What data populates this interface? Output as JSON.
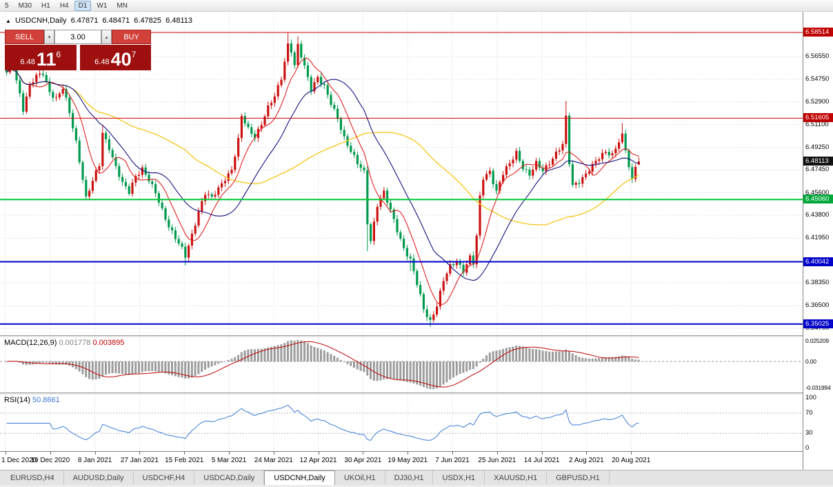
{
  "toolbar": {
    "periods": [
      "5",
      "M30",
      "H1",
      "H4",
      "D1",
      "W1",
      "MN"
    ],
    "active_period": "D1"
  },
  "chart_header": {
    "collapse_icon": "▲",
    "symbol": "USDCNH,Daily",
    "open": "6.47871",
    "high": "6.48471",
    "low": "6.47825",
    "close": "6.48113"
  },
  "trade_panel": {
    "sell_label": "SELL",
    "buy_label": "BUY",
    "volume": "3.00",
    "spin_down_icon": "▾",
    "spin_up_icon": "▴",
    "bid": {
      "prefix": "6.48",
      "big": "11",
      "sup": "6"
    },
    "ask": {
      "prefix": "6.48",
      "big": "40",
      "sup": "7"
    }
  },
  "price_scale": {
    "tick_labels": [
      "6.56550",
      "6.54750",
      "6.52900",
      "6.51100",
      "6.49250",
      "6.47450",
      "6.45600",
      "6.43800",
      "6.41950",
      "6.38350",
      "6.36500",
      "6.34700"
    ],
    "tick_values": [
      6.5655,
      6.5475,
      6.529,
      6.511,
      6.4925,
      6.4745,
      6.456,
      6.438,
      6.4195,
      6.3835,
      6.365,
      6.347
    ],
    "line_labels": [
      {
        "text": "6.58514",
        "price": 6.58514,
        "bg": "#c00000"
      },
      {
        "text": "6.51605",
        "price": 6.51605,
        "bg": "#c00000"
      },
      {
        "text": "6.48113",
        "price": 6.48113,
        "bg": "#111111"
      },
      {
        "text": "6.45060",
        "price": 6.4506,
        "bg": "#00a83c"
      },
      {
        "text": "6.40042",
        "price": 6.40042,
        "bg": "#0000c8"
      },
      {
        "text": "6.35025",
        "price": 6.35025,
        "bg": "#0000c8"
      }
    ]
  },
  "chart_data": {
    "type": "candlestick",
    "symbol": "USDCNH",
    "timeframe": "Daily",
    "candle_count": 192,
    "current_bar": {
      "open": 6.47871,
      "high": 6.48471,
      "low": 6.47825,
      "close": 6.48113
    },
    "up_color": "#cc1111",
    "down_color": "#009a4e",
    "price_anchors": [
      [
        0,
        6.552
      ],
      [
        2,
        6.557
      ],
      [
        4,
        6.536
      ],
      [
        5,
        6.524
      ],
      [
        7,
        6.543
      ],
      [
        9,
        6.549
      ],
      [
        11,
        6.552
      ],
      [
        13,
        6.538
      ],
      [
        15,
        6.532
      ],
      [
        17,
        6.54
      ],
      [
        19,
        6.52
      ],
      [
        21,
        6.497
      ],
      [
        23,
        6.468
      ],
      [
        24,
        6.452
      ],
      [
        26,
        6.465
      ],
      [
        28,
        6.478
      ],
      [
        29,
        6.504
      ],
      [
        31,
        6.493
      ],
      [
        33,
        6.477
      ],
      [
        35,
        6.463
      ],
      [
        37,
        6.456
      ],
      [
        39,
        6.47
      ],
      [
        41,
        6.476
      ],
      [
        43,
        6.466
      ],
      [
        45,
        6.455
      ],
      [
        47,
        6.442
      ],
      [
        49,
        6.43
      ],
      [
        51,
        6.42
      ],
      [
        53,
        6.41
      ],
      [
        54,
        6.404
      ],
      [
        56,
        6.422
      ],
      [
        58,
        6.442
      ],
      [
        60,
        6.456
      ],
      [
        62,
        6.451
      ],
      [
        64,
        6.459
      ],
      [
        66,
        6.468
      ],
      [
        68,
        6.475
      ],
      [
        70,
        6.498
      ],
      [
        71,
        6.517
      ],
      [
        73,
        6.507
      ],
      [
        75,
        6.502
      ],
      [
        77,
        6.512
      ],
      [
        79,
        6.524
      ],
      [
        81,
        6.533
      ],
      [
        83,
        6.549
      ],
      [
        85,
        6.576
      ],
      [
        86,
        6.571
      ],
      [
        87,
        6.558
      ],
      [
        88,
        6.574
      ],
      [
        90,
        6.557
      ],
      [
        92,
        6.54
      ],
      [
        94,
        6.55
      ],
      [
        96,
        6.541
      ],
      [
        98,
        6.527
      ],
      [
        100,
        6.516
      ],
      [
        102,
        6.501
      ],
      [
        104,
        6.49
      ],
      [
        106,
        6.479
      ],
      [
        108,
        6.472
      ],
      [
        109,
        6.432
      ],
      [
        110,
        6.418
      ],
      [
        112,
        6.447
      ],
      [
        114,
        6.456
      ],
      [
        116,
        6.441
      ],
      [
        118,
        6.426
      ],
      [
        120,
        6.412
      ],
      [
        122,
        6.402
      ],
      [
        124,
        6.382
      ],
      [
        126,
        6.362
      ],
      [
        128,
        6.353
      ],
      [
        130,
        6.366
      ],
      [
        132,
        6.385
      ],
      [
        134,
        6.396
      ],
      [
        136,
        6.401
      ],
      [
        138,
        6.394
      ],
      [
        140,
        6.404
      ],
      [
        141,
        6.399
      ],
      [
        142,
        6.42
      ],
      [
        143,
        6.452
      ],
      [
        144,
        6.468
      ],
      [
        146,
        6.474
      ],
      [
        148,
        6.457
      ],
      [
        150,
        6.471
      ],
      [
        152,
        6.479
      ],
      [
        154,
        6.489
      ],
      [
        156,
        6.477
      ],
      [
        158,
        6.47
      ],
      [
        160,
        6.479
      ],
      [
        162,
        6.474
      ],
      [
        164,
        6.481
      ],
      [
        166,
        6.488
      ],
      [
        168,
        6.494
      ],
      [
        169,
        6.516
      ],
      [
        170,
        6.48
      ],
      [
        171,
        6.462
      ],
      [
        173,
        6.466
      ],
      [
        175,
        6.471
      ],
      [
        177,
        6.477
      ],
      [
        179,
        6.484
      ],
      [
        181,
        6.49
      ],
      [
        183,
        6.487
      ],
      [
        185,
        6.497
      ],
      [
        186,
        6.501
      ],
      [
        187,
        6.49
      ],
      [
        188,
        6.477
      ],
      [
        189,
        6.466
      ],
      [
        190,
        6.479
      ],
      [
        191,
        6.481
      ]
    ],
    "wick_events": [
      {
        "day": 2,
        "high": 6.5715
      },
      {
        "day": 29,
        "high": 6.51
      },
      {
        "day": 54,
        "low": 6.3975
      },
      {
        "day": 85,
        "high": 6.5851
      },
      {
        "day": 88,
        "high": 6.582
      },
      {
        "day": 109,
        "low": 6.409
      },
      {
        "day": 122,
        "low": 6.393
      },
      {
        "day": 128,
        "low": 6.348
      },
      {
        "day": 169,
        "high": 6.53
      },
      {
        "day": 186,
        "high": 6.512
      }
    ],
    "hlines": [
      {
        "price": 6.58514,
        "color": "#cc0000",
        "width": 1
      },
      {
        "price": 6.51605,
        "color": "#cc0000",
        "width": 1
      },
      {
        "price": 6.4506,
        "color": "#00c832",
        "width": 2
      },
      {
        "price": 6.40042,
        "color": "#0000d2",
        "width": 2
      },
      {
        "price": 6.35025,
        "color": "#0000d2",
        "width": 2
      }
    ],
    "moving_averages": [
      {
        "period": 55,
        "color": "#f5c518",
        "width": 1.3
      },
      {
        "period": 8,
        "color": "#e02020",
        "width": 1.1
      },
      {
        "period": 21,
        "color": "#101080",
        "width": 1.1
      }
    ],
    "grid_extra_prices": [
      6.584,
      6.4015
    ]
  },
  "macd": {
    "label": "MACD(12,26,9)",
    "main_value": "0.001778",
    "signal_value": "0.003895",
    "axis_labels": [
      {
        "text": "0.025209",
        "value": 0.025209
      },
      {
        "text": "0.00",
        "value": 0
      },
      {
        "text": "-0.031994",
        "value": -0.031994
      }
    ]
  },
  "rsi": {
    "label": "RSI(14)",
    "value": "50.8661",
    "axis_labels": [
      {
        "text": "100",
        "value": 100
      },
      {
        "text": "70",
        "value": 70
      },
      {
        "text": "30",
        "value": 30
      },
      {
        "text": "0",
        "value": 0
      }
    ],
    "levels": [
      70,
      30
    ]
  },
  "time_axis": {
    "labels": [
      "1 Dec 2020",
      "19 Dec 2020",
      "8 Jan 2021",
      "27 Jan 2021",
      "15 Feb 2021",
      "5 Mar 2021",
      "24 Mar 2021",
      "12 Apr 2021",
      "30 Apr 2021",
      "19 May 2021",
      "7 Jun 2021",
      "25 Jun 2021",
      "14 Jul 2021",
      "2 Aug 2021",
      "20 Aug 2021"
    ]
  },
  "tabs": [
    "EURUSD,H4",
    "AUDUSD,Daily",
    "USDCHF,H4",
    "USDCAD,Daily",
    "USDCNH,Daily",
    "UKOil,H1",
    "DJ30,H1",
    "USDX,H1",
    "XAUUSD,H1",
    "GBPUSD,H1"
  ],
  "active_tab": "USDCNH,Daily"
}
